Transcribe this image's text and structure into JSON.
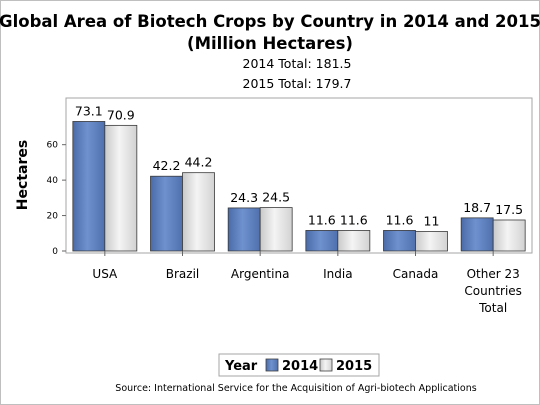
{
  "chart_data": {
    "type": "bar",
    "title": [
      "Global Area of Biotech Crops by Country in 2014 and 2015",
      "(Million Hectares)"
    ],
    "subtitles": [
      "2014 Total: 181.5",
      "2015 Total: 179.7"
    ],
    "ylabel": "Hectares",
    "xlabel": "",
    "ylim": [
      0,
      80
    ],
    "yticks": [
      0,
      20,
      40,
      60
    ],
    "categories": [
      [
        "USA"
      ],
      [
        "Brazil"
      ],
      [
        "Argentina"
      ],
      [
        "India"
      ],
      [
        "Canada"
      ],
      [
        "Other 23",
        "Countries",
        "Total"
      ]
    ],
    "series": [
      {
        "name": "2014",
        "values": [
          73.1,
          42.2,
          24.3,
          11.6,
          11.6,
          18.7
        ],
        "labels": [
          "73.1",
          "42.2",
          "24.3",
          "11.6",
          "11.6",
          "18.7"
        ],
        "color": "#5b7fbf"
      },
      {
        "name": "2015",
        "values": [
          70.9,
          44.2,
          24.5,
          11.6,
          11,
          17.5
        ],
        "labels": [
          "70.9",
          "44.2",
          "24.5",
          "11.6",
          "11",
          "17.5"
        ],
        "color": "#e2e2e2"
      }
    ],
    "grid": false,
    "legend": {
      "title": "Year",
      "position": "bottom-center"
    },
    "footnote": "Source: International Service for the Acquisition of Agri-biotech Applications"
  }
}
